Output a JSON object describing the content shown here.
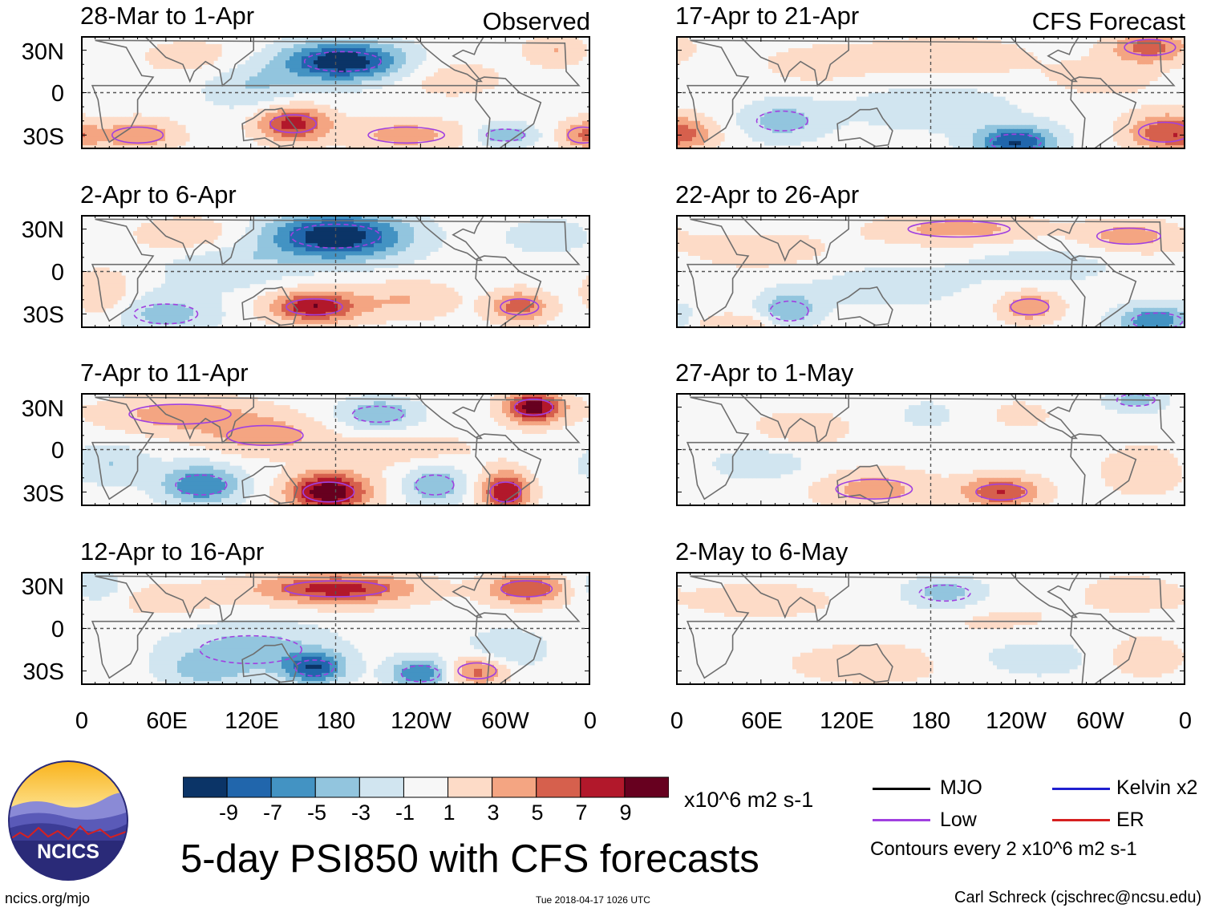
{
  "chart_data": {
    "type": "heatmap",
    "title": "5-day PSI850 with CFS forecasts",
    "variable": "PSI850 anomaly",
    "units": "x10^6 m2 s-1",
    "column_labels": {
      "left": "Observed",
      "right": "CFS Forecast"
    },
    "lat_ticks": [
      "30N",
      "0",
      "30S"
    ],
    "lon_ticks": [
      "0",
      "60E",
      "120E",
      "180",
      "120W",
      "60W",
      "0"
    ],
    "colorbar": {
      "ticks": [
        "-9",
        "-7",
        "-5",
        "-3",
        "-1",
        "1",
        "3",
        "5",
        "7",
        "9"
      ],
      "colors": [
        "#0b3467",
        "#2166ac",
        "#4393c3",
        "#92c5de",
        "#d1e5f0",
        "#f7f7f7",
        "#fddbc7",
        "#f4a582",
        "#d6604d",
        "#b2182b",
        "#67001f"
      ]
    },
    "panels": [
      {
        "title": "28-Mar to 1-Apr",
        "column": "left",
        "kind": "observed",
        "features": [
          {
            "lon": 185,
            "lat": 22,
            "value": -11,
            "sx": 30,
            "sy": 10
          },
          {
            "lon": 150,
            "lat": -22,
            "value": 8,
            "sx": 18,
            "sy": 9
          },
          {
            "lon": 120,
            "lat": 5,
            "value": -3,
            "sx": 25,
            "sy": 12
          },
          {
            "lon": 230,
            "lat": -30,
            "value": 4,
            "sx": 30,
            "sy": 8
          },
          {
            "lon": 300,
            "lat": -30,
            "value": -5,
            "sx": 15,
            "sy": 6
          },
          {
            "lon": 40,
            "lat": -30,
            "value": 5,
            "sx": 20,
            "sy": 8
          },
          {
            "lon": 355,
            "lat": -30,
            "value": 5,
            "sx": 12,
            "sy": 8
          },
          {
            "lon": 260,
            "lat": 10,
            "value": 2,
            "sx": 30,
            "sy": 10
          },
          {
            "lon": 80,
            "lat": 25,
            "value": 2,
            "sx": 30,
            "sy": 10
          },
          {
            "lon": 335,
            "lat": 30,
            "value": 3,
            "sx": 15,
            "sy": 8
          }
        ]
      },
      {
        "title": "2-Apr to 6-Apr",
        "column": "left",
        "kind": "observed",
        "features": [
          {
            "lon": 180,
            "lat": 25,
            "value": -11,
            "sx": 35,
            "sy": 12
          },
          {
            "lon": 165,
            "lat": -25,
            "value": 9,
            "sx": 22,
            "sy": 8
          },
          {
            "lon": 100,
            "lat": 5,
            "value": -3,
            "sx": 30,
            "sy": 12
          },
          {
            "lon": 60,
            "lat": -30,
            "value": -4,
            "sx": 25,
            "sy": 10
          },
          {
            "lon": 230,
            "lat": -20,
            "value": 3,
            "sx": 25,
            "sy": 10
          },
          {
            "lon": 310,
            "lat": -25,
            "value": 6,
            "sx": 15,
            "sy": 8
          },
          {
            "lon": 80,
            "lat": 25,
            "value": 3,
            "sx": 30,
            "sy": 10
          },
          {
            "lon": 330,
            "lat": 25,
            "value": -2,
            "sx": 25,
            "sy": 10
          },
          {
            "lon": 15,
            "lat": -15,
            "value": 3,
            "sx": 15,
            "sy": 12
          }
        ]
      },
      {
        "title": "7-Apr to 11-Apr",
        "column": "left",
        "kind": "observed",
        "features": [
          {
            "lon": 320,
            "lat": 30,
            "value": 10,
            "sx": 15,
            "sy": 8
          },
          {
            "lon": 175,
            "lat": -30,
            "value": 11,
            "sx": 20,
            "sy": 10
          },
          {
            "lon": 85,
            "lat": -25,
            "value": -7,
            "sx": 20,
            "sy": 10
          },
          {
            "lon": 300,
            "lat": -30,
            "value": 9,
            "sx": 12,
            "sy": 10
          },
          {
            "lon": 70,
            "lat": 25,
            "value": 4,
            "sx": 40,
            "sy": 10
          },
          {
            "lon": 210,
            "lat": 25,
            "value": -5,
            "sx": 20,
            "sy": 8
          },
          {
            "lon": 130,
            "lat": 10,
            "value": 4,
            "sx": 30,
            "sy": 10
          },
          {
            "lon": 250,
            "lat": -25,
            "value": -5,
            "sx": 15,
            "sy": 10
          },
          {
            "lon": 230,
            "lat": 0,
            "value": 2,
            "sx": 40,
            "sy": 10
          },
          {
            "lon": 20,
            "lat": -10,
            "value": -3,
            "sx": 20,
            "sy": 10
          }
        ]
      },
      {
        "title": "12-Apr to 16-Apr",
        "column": "left",
        "kind": "observed",
        "features": [
          {
            "lon": 180,
            "lat": 28,
            "value": 8,
            "sx": 40,
            "sy": 8
          },
          {
            "lon": 315,
            "lat": 28,
            "value": 7,
            "sx": 20,
            "sy": 8
          },
          {
            "lon": 120,
            "lat": -15,
            "value": -4,
            "sx": 40,
            "sy": 14
          },
          {
            "lon": 165,
            "lat": -28,
            "value": -8,
            "sx": 15,
            "sy": 8
          },
          {
            "lon": 240,
            "lat": -32,
            "value": -7,
            "sx": 15,
            "sy": 8
          },
          {
            "lon": 280,
            "lat": -30,
            "value": 6,
            "sx": 15,
            "sy": 8
          },
          {
            "lon": 300,
            "lat": -15,
            "value": -3,
            "sx": 20,
            "sy": 10
          },
          {
            "lon": 60,
            "lat": 20,
            "value": 2,
            "sx": 30,
            "sy": 10
          },
          {
            "lon": 10,
            "lat": 30,
            "value": -3,
            "sx": 15,
            "sy": 8
          },
          {
            "lon": 85,
            "lat": -30,
            "value": -3,
            "sx": 20,
            "sy": 8
          }
        ]
      },
      {
        "title": "17-Apr to 21-Apr",
        "column": "right",
        "kind": "forecast",
        "features": [
          {
            "lon": 240,
            "lat": -35,
            "value": -9,
            "sx": 20,
            "sy": 8
          },
          {
            "lon": 335,
            "lat": 32,
            "value": 6,
            "sx": 20,
            "sy": 8
          },
          {
            "lon": 345,
            "lat": -28,
            "value": 6,
            "sx": 20,
            "sy": 10
          },
          {
            "lon": 75,
            "lat": -20,
            "value": -4,
            "sx": 20,
            "sy": 10
          },
          {
            "lon": 180,
            "lat": -10,
            "value": -2,
            "sx": 50,
            "sy": 14
          },
          {
            "lon": 190,
            "lat": 25,
            "value": 3,
            "sx": 40,
            "sy": 10
          },
          {
            "lon": 300,
            "lat": 10,
            "value": 2,
            "sx": 30,
            "sy": 10
          },
          {
            "lon": 100,
            "lat": 20,
            "value": 2,
            "sx": 30,
            "sy": 10
          },
          {
            "lon": 10,
            "lat": -30,
            "value": 3,
            "sx": 15,
            "sy": 8
          }
        ]
      },
      {
        "title": "22-Apr to 26-Apr",
        "column": "right",
        "kind": "forecast",
        "features": [
          {
            "lon": 340,
            "lat": -35,
            "value": -7,
            "sx": 20,
            "sy": 8
          },
          {
            "lon": 200,
            "lat": 30,
            "value": 4,
            "sx": 40,
            "sy": 8
          },
          {
            "lon": 320,
            "lat": 25,
            "value": 4,
            "sx": 25,
            "sy": 8
          },
          {
            "lon": 80,
            "lat": -28,
            "value": -5,
            "sx": 15,
            "sy": 10
          },
          {
            "lon": 250,
            "lat": -25,
            "value": 5,
            "sx": 15,
            "sy": 8
          },
          {
            "lon": 60,
            "lat": 15,
            "value": 2,
            "sx": 40,
            "sy": 10
          },
          {
            "lon": 150,
            "lat": -10,
            "value": -2,
            "sx": 40,
            "sy": 12
          },
          {
            "lon": 260,
            "lat": 5,
            "value": -2,
            "sx": 40,
            "sy": 10
          },
          {
            "lon": 40,
            "lat": -38,
            "value": 3,
            "sx": 30,
            "sy": 6
          }
        ]
      },
      {
        "title": "27-Apr to 1-May",
        "column": "right",
        "kind": "forecast",
        "features": [
          {
            "lon": 230,
            "lat": -30,
            "value": 7,
            "sx": 20,
            "sy": 8
          },
          {
            "lon": 140,
            "lat": -28,
            "value": 4,
            "sx": 30,
            "sy": 10
          },
          {
            "lon": 325,
            "lat": 35,
            "value": -4,
            "sx": 15,
            "sy": 6
          },
          {
            "lon": 190,
            "lat": 25,
            "value": -2,
            "sx": 30,
            "sy": 10
          },
          {
            "lon": 230,
            "lat": 25,
            "value": 2,
            "sx": 30,
            "sy": 10
          },
          {
            "lon": 60,
            "lat": -10,
            "value": -2,
            "sx": 30,
            "sy": 10
          },
          {
            "lon": 330,
            "lat": -15,
            "value": 3,
            "sx": 20,
            "sy": 12
          },
          {
            "lon": 90,
            "lat": 15,
            "value": 2,
            "sx": 30,
            "sy": 10
          }
        ]
      },
      {
        "title": "2-May to 6-May",
        "column": "right",
        "kind": "forecast",
        "features": [
          {
            "lon": 190,
            "lat": 25,
            "value": -4,
            "sx": 20,
            "sy": 8
          },
          {
            "lon": 140,
            "lat": -25,
            "value": 2,
            "sx": 50,
            "sy": 12
          },
          {
            "lon": 330,
            "lat": -20,
            "value": 3,
            "sx": 20,
            "sy": 10
          },
          {
            "lon": 250,
            "lat": -20,
            "value": -2,
            "sx": 40,
            "sy": 12
          },
          {
            "lon": 60,
            "lat": 20,
            "value": 2,
            "sx": 40,
            "sy": 10
          },
          {
            "lon": 320,
            "lat": 25,
            "value": 2,
            "sx": 25,
            "sy": 10
          },
          {
            "lon": 230,
            "lat": 5,
            "value": 1.5,
            "sx": 40,
            "sy": 10
          }
        ]
      }
    ]
  },
  "legend": {
    "items": [
      {
        "label": "MJO",
        "color": "#000000"
      },
      {
        "label": "Kelvin x2",
        "color": "#1f1fd0"
      },
      {
        "label": "Low",
        "color": "#a040e0"
      },
      {
        "label": "ER",
        "color": "#d62020"
      }
    ],
    "contour_note": "Contours every 2 x10^6 m2 s-1"
  },
  "logo": {
    "text": "NCICS"
  },
  "footer": {
    "site": "ncics.org/mjo",
    "timestamp": "Tue 2018-04-17 1026 UTC",
    "author": "Carl Schreck (cjschrec@ncsu.edu)"
  }
}
